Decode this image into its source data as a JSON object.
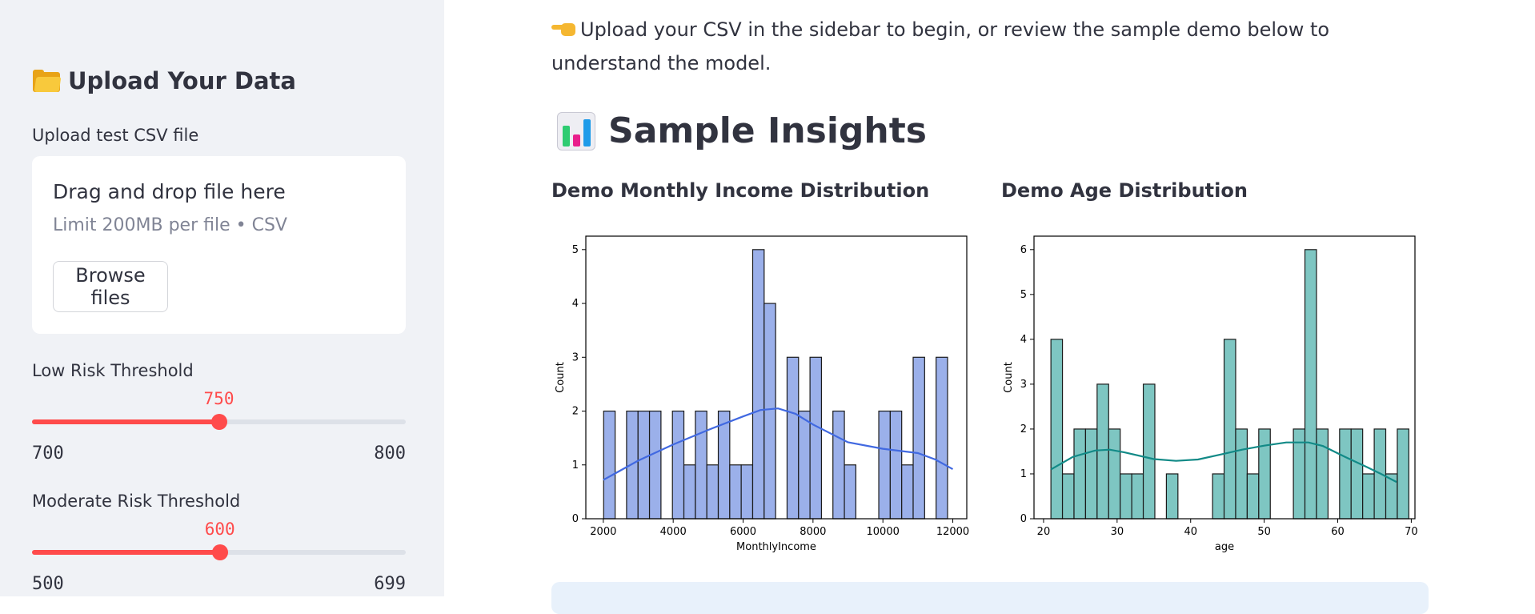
{
  "sidebar": {
    "header_title": "Upload Your Data",
    "header_icon": "folder-icon",
    "upload_label": "Upload test CSV file",
    "dropzone_title": "Drag and drop file here",
    "dropzone_limit": "Limit 200MB per file • CSV",
    "browse_label": "Browse files",
    "low_risk": {
      "label": "Low Risk Threshold",
      "value": 750,
      "value_text": "750",
      "min": 700,
      "min_text": "700",
      "max": 800,
      "max_text": "800"
    },
    "moderate_risk": {
      "label": "Moderate Risk Threshold",
      "value": 600,
      "value_text": "600",
      "min": 500,
      "min_text": "500",
      "max": 699,
      "max_text": "699"
    }
  },
  "main": {
    "intro_text": "Upload your CSV in the sidebar to begin, or review the sample demo below to understand the model.",
    "intro_icon": "pointing-hand-icon",
    "section_title": "Sample Insights",
    "section_icon": "bar-chart-icon",
    "income_title": "Demo Monthly Income Distribution",
    "age_title": "Demo Age Distribution"
  },
  "colors": {
    "accent": "#ff4b4b",
    "income_bar": "#9bb0ea",
    "income_kde": "#4169e1",
    "age_bar": "#7ec6c2",
    "age_kde": "#128a87"
  },
  "chart_data": [
    {
      "type": "bar",
      "kind": "histogram",
      "xlabel": "MonthlyIncome",
      "ylabel": "Count",
      "xlim": [
        1500,
        12400
      ],
      "ylim": [
        0,
        5.25
      ],
      "xticks": [
        2000,
        4000,
        6000,
        8000,
        10000,
        12000
      ],
      "xtick_labels": [
        "2000",
        "4000",
        "6000",
        "8000",
        "10000",
        "12000"
      ],
      "yticks": [
        0,
        1,
        2,
        3,
        4,
        5
      ],
      "ytick_labels": [
        "0",
        "1",
        "2",
        "3",
        "4",
        "5"
      ],
      "bin_start": 2010,
      "bin_width": 328,
      "values": [
        2,
        0,
        2,
        2,
        2,
        0,
        2,
        1,
        2,
        1,
        2,
        1,
        1,
        5,
        4,
        0,
        3,
        2,
        3,
        0,
        2,
        1,
        0,
        0,
        2,
        2,
        1,
        3,
        0,
        3
      ],
      "kde": {
        "x": [
          2000,
          3000,
          4000,
          5000,
          6000,
          6500,
          7000,
          7500,
          8000,
          9000,
          10000,
          11000,
          11500,
          12000
        ],
        "y": [
          0.72,
          1.08,
          1.38,
          1.65,
          1.9,
          2.02,
          2.05,
          1.95,
          1.75,
          1.42,
          1.3,
          1.22,
          1.1,
          0.92
        ]
      }
    },
    {
      "type": "bar",
      "kind": "histogram",
      "xlabel": "age",
      "ylabel": "Count",
      "xlim": [
        18.7,
        70.5
      ],
      "ylim": [
        0,
        6.3
      ],
      "xticks": [
        20,
        30,
        40,
        50,
        60,
        70
      ],
      "xtick_labels": [
        "20",
        "30",
        "40",
        "50",
        "60",
        "70"
      ],
      "yticks": [
        0,
        1,
        2,
        3,
        4,
        5,
        6
      ],
      "ytick_labels": [
        "0",
        "1",
        "2",
        "3",
        "4",
        "5",
        "6"
      ],
      "bin_start": 21,
      "bin_width": 1.57,
      "values": [
        4,
        1,
        2,
        2,
        3,
        2,
        1,
        1,
        3,
        0,
        1,
        0,
        0,
        0,
        1,
        4,
        2,
        1,
        2,
        0,
        0,
        2,
        6,
        2,
        0,
        2,
        2,
        1,
        2,
        1,
        2
      ],
      "kde": {
        "x": [
          21,
          24,
          27,
          29,
          31,
          35,
          38,
          41,
          44,
          47,
          50,
          53,
          56,
          58,
          61,
          64,
          66,
          68
        ],
        "y": [
          1.1,
          1.38,
          1.52,
          1.54,
          1.48,
          1.33,
          1.29,
          1.32,
          1.43,
          1.54,
          1.63,
          1.7,
          1.7,
          1.62,
          1.38,
          1.15,
          0.99,
          0.82
        ]
      }
    }
  ]
}
